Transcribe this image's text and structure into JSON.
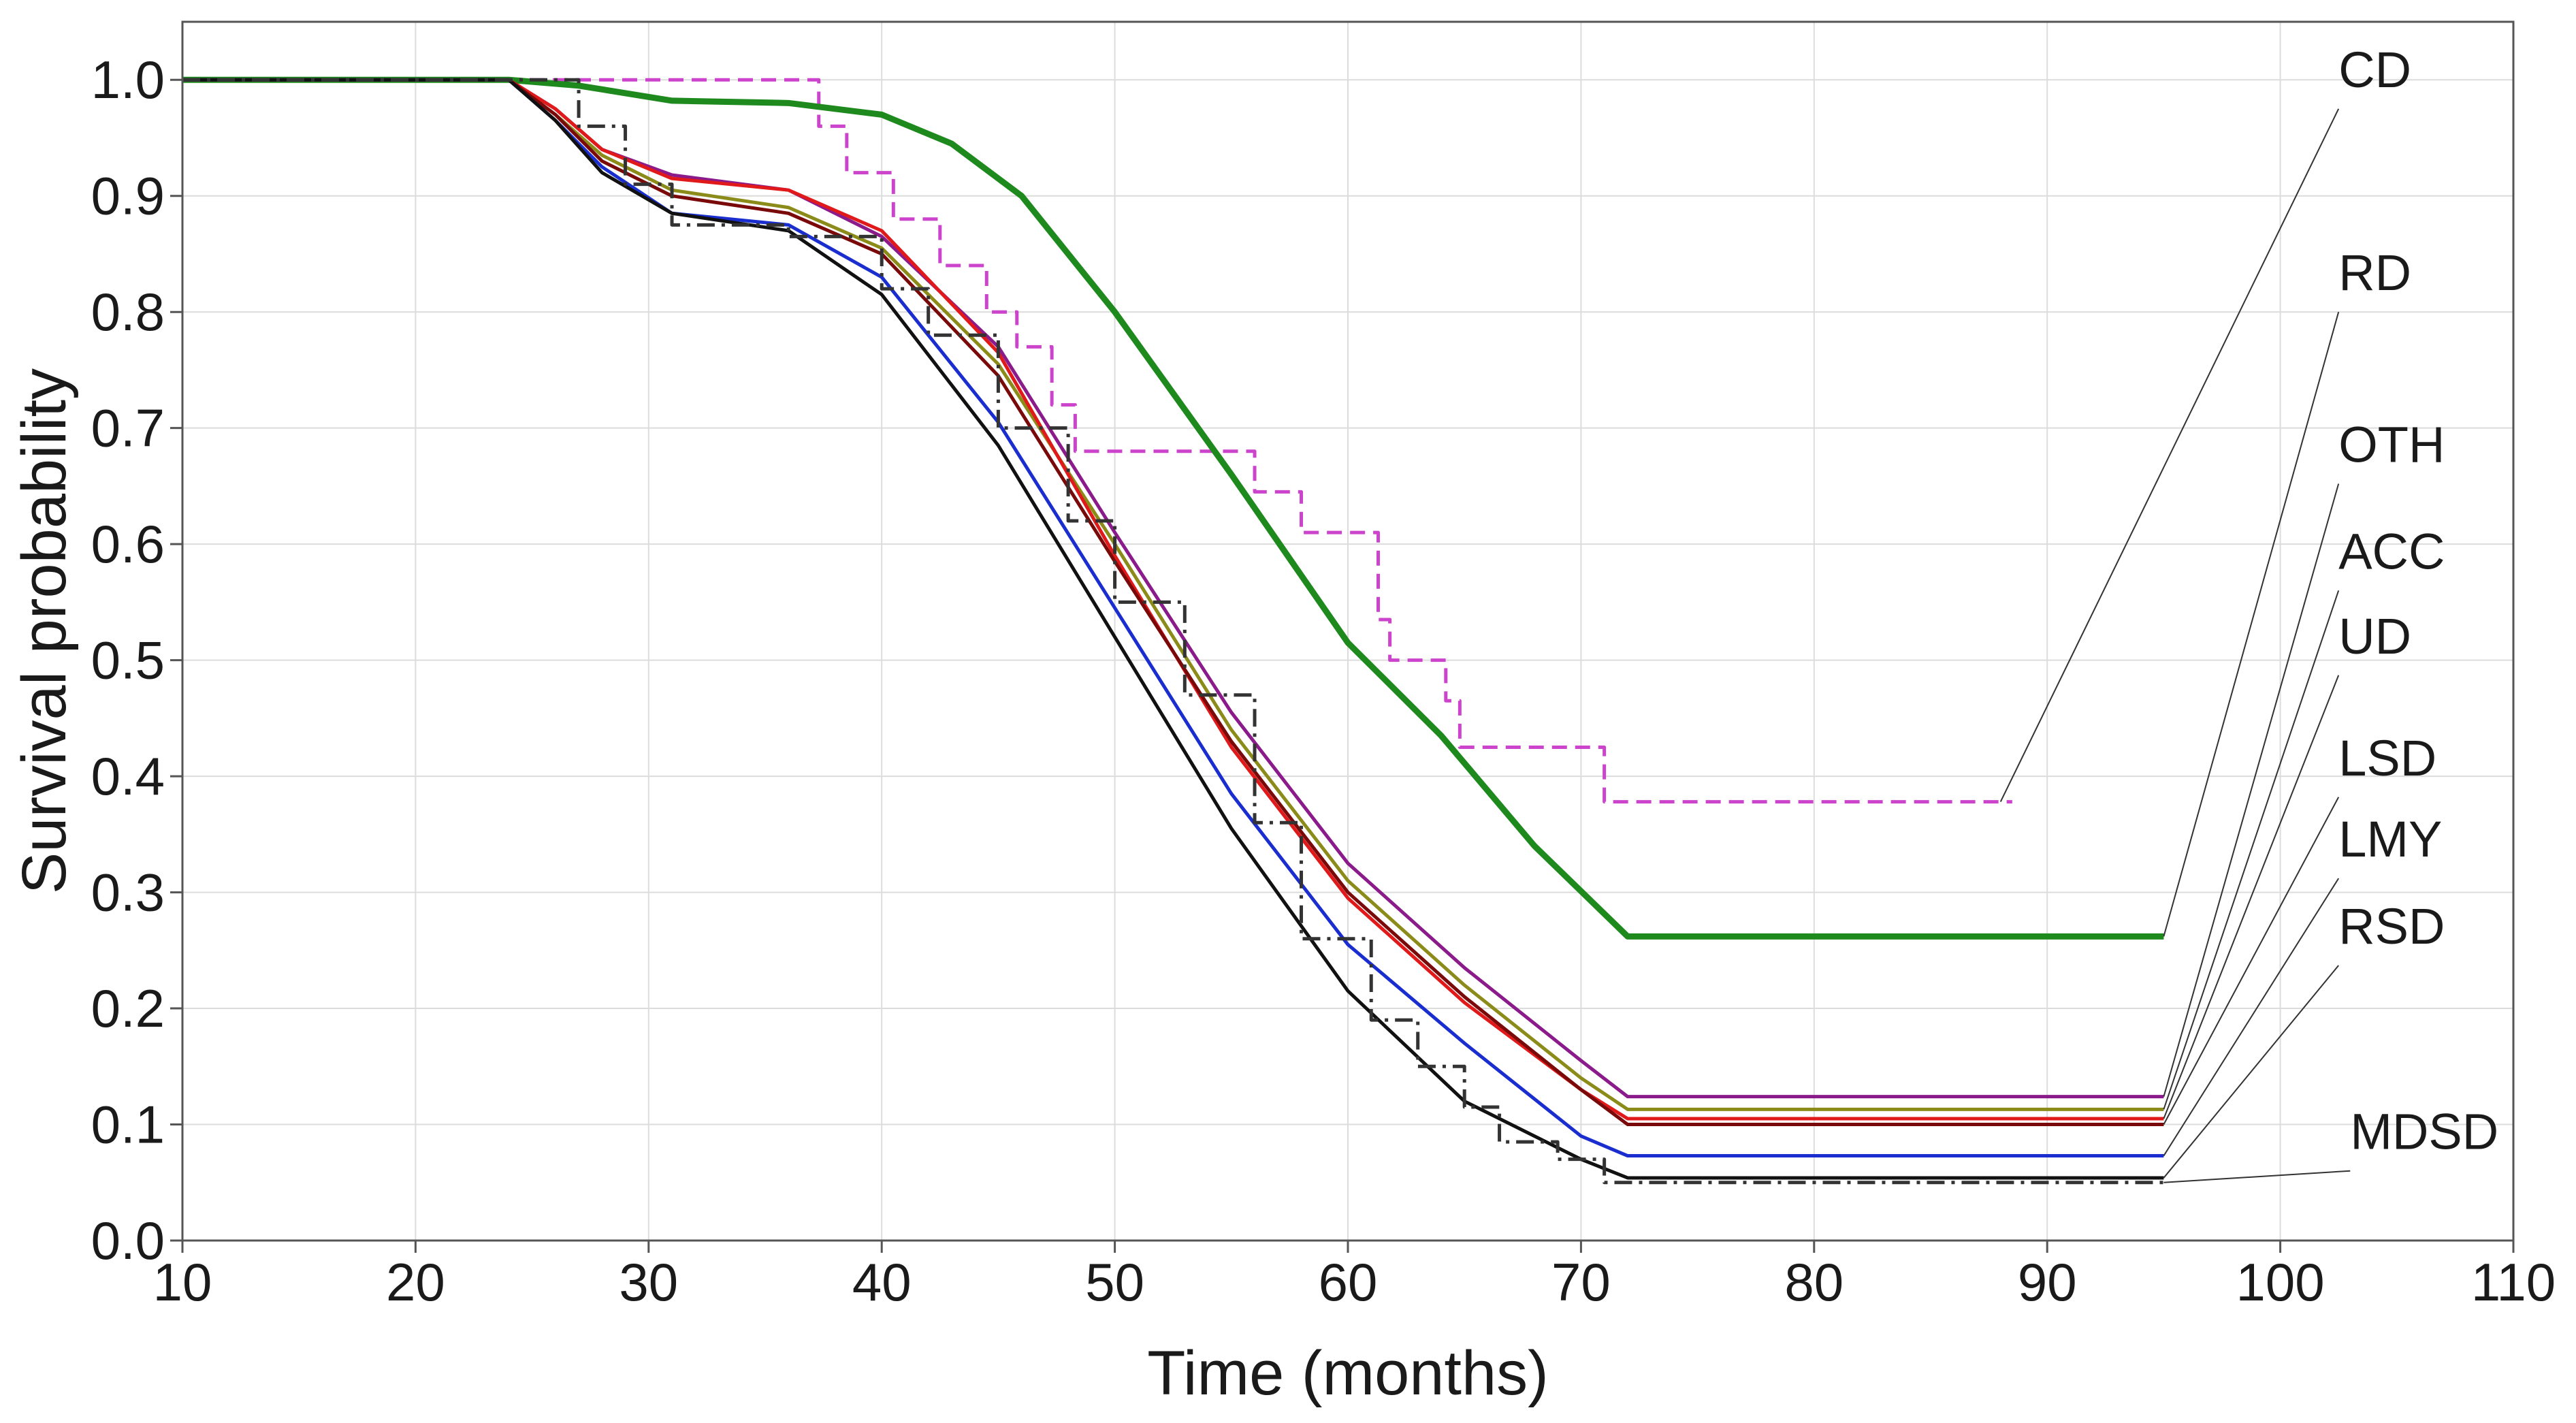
{
  "chart_data": {
    "type": "line",
    "xlabel": "Time (months)",
    "ylabel": "Survival probability",
    "xlim": [
      10,
      110
    ],
    "ylim": [
      0.0,
      1.05
    ],
    "xticks": [
      10,
      20,
      30,
      40,
      50,
      60,
      70,
      80,
      90,
      100,
      110
    ],
    "yticks": [
      0.0,
      0.1,
      0.2,
      0.3,
      0.4,
      0.5,
      0.6,
      0.7,
      0.8,
      0.9,
      1.0
    ],
    "xtick_labels": [
      "10",
      "20",
      "30",
      "40",
      "50",
      "60",
      "70",
      "80",
      "90",
      "100",
      "110"
    ],
    "ytick_labels": [
      "0.0",
      "0.1",
      "0.2",
      "0.3",
      "0.4",
      "0.5",
      "0.6",
      "0.7",
      "0.8",
      "0.9",
      "1.0"
    ],
    "grid": true,
    "series": [
      {
        "name": "CD",
        "color": "#cc44cc",
        "dash": "dashed",
        "step": true,
        "x": [
          10,
          36.5,
          37.3,
          38.5,
          40.5,
          42.5,
          44.5,
          45.8,
          47.3,
          48.3,
          52,
          56,
          58,
          61.3,
          61.8,
          64.2,
          64.8,
          71,
          88.5
        ],
        "y": [
          1.0,
          1.0,
          0.96,
          0.92,
          0.88,
          0.84,
          0.8,
          0.77,
          0.72,
          0.68,
          0.68,
          0.645,
          0.61,
          0.535,
          0.5,
          0.465,
          0.425,
          0.378,
          0.378
        ],
        "label_xy": [
          102.5,
          0.975
        ],
        "end_xy": [
          88.0,
          0.378
        ]
      },
      {
        "name": "RD",
        "color": "#1e8a1e",
        "dash": "solid",
        "step": false,
        "x": [
          10,
          24,
          27,
          31,
          36,
          40,
          43,
          46,
          50,
          55,
          60,
          64,
          68,
          72,
          95
        ],
        "y": [
          1.0,
          1.0,
          0.995,
          0.982,
          0.98,
          0.97,
          0.945,
          0.9,
          0.8,
          0.66,
          0.515,
          0.435,
          0.34,
          0.262,
          0.262
        ],
        "label_xy": [
          102.5,
          0.8
        ],
        "end_xy": [
          95.0,
          0.262
        ]
      },
      {
        "name": "OTH",
        "color": "#8b1a8b",
        "dash": "solid",
        "step": false,
        "x": [
          10,
          24,
          26,
          28,
          31,
          36,
          40,
          45,
          50,
          55,
          60,
          65,
          70,
          72,
          95
        ],
        "y": [
          1.0,
          1.0,
          0.975,
          0.94,
          0.918,
          0.905,
          0.865,
          0.77,
          0.61,
          0.455,
          0.325,
          0.235,
          0.155,
          0.124,
          0.124
        ],
        "label_xy": [
          102.5,
          0.652
        ],
        "end_xy": [
          95.0,
          0.124
        ]
      },
      {
        "name": "ACC",
        "color": "#8b8b1a",
        "dash": "solid",
        "step": false,
        "x": [
          10,
          24,
          26,
          28,
          31,
          36,
          40,
          45,
          50,
          55,
          60,
          65,
          70,
          72,
          95
        ],
        "y": [
          1.0,
          1.0,
          0.97,
          0.935,
          0.905,
          0.89,
          0.855,
          0.755,
          0.6,
          0.44,
          0.31,
          0.22,
          0.14,
          0.113,
          0.113
        ],
        "label_xy": [
          102.5,
          0.56
        ],
        "end_xy": [
          95.0,
          0.113
        ]
      },
      {
        "name": "UD",
        "color": "#e01a1a",
        "dash": "solid",
        "step": false,
        "x": [
          10,
          24,
          26,
          28,
          31,
          36,
          40,
          45,
          50,
          55,
          60,
          65,
          70,
          72,
          95
        ],
        "y": [
          1.0,
          1.0,
          0.975,
          0.94,
          0.915,
          0.905,
          0.87,
          0.765,
          0.59,
          0.425,
          0.295,
          0.205,
          0.13,
          0.105,
          0.105
        ],
        "label_xy": [
          102.5,
          0.487
        ],
        "end_xy": [
          95.0,
          0.105
        ]
      },
      {
        "name": "LSD",
        "color": "#7a0a0a",
        "dash": "solid",
        "step": false,
        "x": [
          10,
          24,
          26,
          28,
          31,
          36,
          40,
          45,
          50,
          55,
          60,
          65,
          70,
          72,
          95
        ],
        "y": [
          1.0,
          1.0,
          0.97,
          0.93,
          0.9,
          0.885,
          0.85,
          0.745,
          0.585,
          0.43,
          0.3,
          0.21,
          0.13,
          0.1,
          0.1
        ],
        "label_xy": [
          102.5,
          0.382
        ],
        "end_xy": [
          95.0,
          0.1
        ]
      },
      {
        "name": "LMY",
        "color": "#1a2ed0",
        "dash": "solid",
        "step": false,
        "x": [
          10,
          24,
          26,
          28,
          31,
          36,
          40,
          45,
          50,
          55,
          60,
          65,
          70,
          72,
          95
        ],
        "y": [
          1.0,
          1.0,
          0.965,
          0.925,
          0.885,
          0.875,
          0.83,
          0.705,
          0.545,
          0.385,
          0.255,
          0.17,
          0.09,
          0.073,
          0.073
        ],
        "label_xy": [
          102.5,
          0.312
        ],
        "end_xy": [
          95.0,
          0.073
        ]
      },
      {
        "name": "RSD",
        "color": "#111111",
        "dash": "solid",
        "step": false,
        "x": [
          10,
          24,
          26,
          28,
          31,
          36,
          40,
          45,
          50,
          55,
          60,
          65,
          70,
          72,
          95
        ],
        "y": [
          1.0,
          1.0,
          0.965,
          0.92,
          0.885,
          0.87,
          0.815,
          0.685,
          0.52,
          0.355,
          0.215,
          0.12,
          0.07,
          0.054,
          0.054
        ],
        "label_xy": [
          102.5,
          0.237
        ],
        "end_xy": [
          95.0,
          0.054
        ]
      },
      {
        "name": "MDSD",
        "color": "#333333",
        "dash": "dashdot",
        "step": true,
        "x": [
          10,
          24,
          27,
          29,
          31,
          36,
          40,
          42,
          45,
          48,
          50,
          53,
          56,
          58,
          61,
          63,
          65,
          66.5,
          69,
          71,
          95
        ],
        "y": [
          1.0,
          1.0,
          0.96,
          0.91,
          0.875,
          0.865,
          0.82,
          0.78,
          0.7,
          0.62,
          0.55,
          0.47,
          0.36,
          0.26,
          0.19,
          0.15,
          0.115,
          0.085,
          0.07,
          0.05,
          0.05
        ],
        "label_xy": [
          103.0,
          0.06
        ],
        "end_xy": [
          95.0,
          0.05
        ]
      }
    ]
  }
}
